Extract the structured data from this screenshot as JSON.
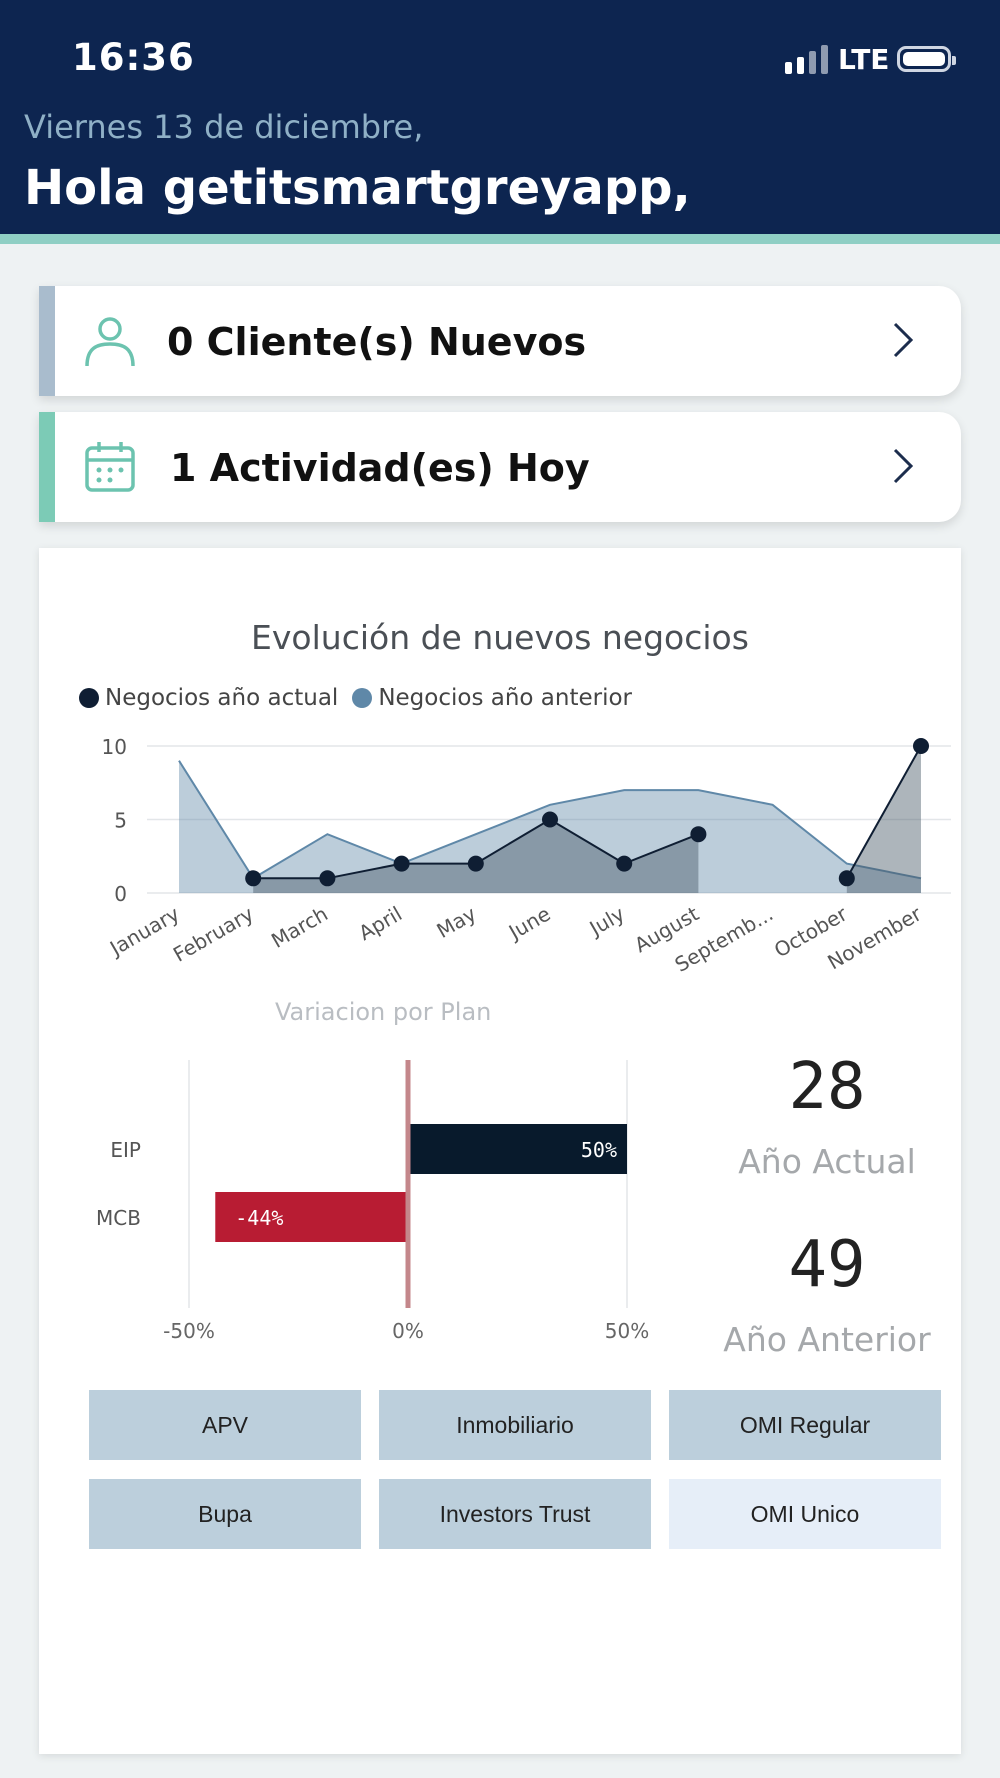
{
  "status_bar": {
    "time": "16:36",
    "network": "LTE",
    "icons": [
      "signal-icon",
      "battery-icon"
    ]
  },
  "header": {
    "date": "Viernes 13 de diciembre,",
    "greeting": "Hola getitsmartgreyapp,"
  },
  "cards": [
    {
      "label": "0 Cliente(s) Nuevos",
      "icon": "user-icon",
      "accent": "#a9bccd"
    },
    {
      "label": "1 Actividad(es) Hoy",
      "icon": "calendar-icon",
      "accent": "#7ccbb6"
    }
  ],
  "colors": {
    "header_bg": "#0d2550",
    "series_current": "#0f1e33",
    "series_previous": "#5f88a8",
    "negative_bar": "#b81c33",
    "positive_bar": "#081a2c"
  },
  "chart_data": [
    {
      "type": "area",
      "title": "Evolución de nuevos negocios",
      "categories": [
        "January",
        "February",
        "March",
        "April",
        "May",
        "June",
        "July",
        "August",
        "Septemb...",
        "October",
        "November"
      ],
      "series": [
        {
          "name": "Negocios año actual",
          "values": [
            null,
            1,
            1,
            2,
            2,
            5,
            2,
            4,
            null,
            1,
            10
          ]
        },
        {
          "name": "Negocios año anterior",
          "values": [
            9,
            1,
            4,
            2,
            4,
            6,
            7,
            7,
            6,
            2,
            1
          ]
        }
      ],
      "yticks": [
        "10",
        "5",
        "0"
      ],
      "ylim": [
        0,
        10
      ],
      "grid": true,
      "legend": "top-left"
    },
    {
      "type": "bar",
      "title": "Variacion por Plan",
      "categories": [
        "EIP",
        "MCB"
      ],
      "values": [
        50,
        -44
      ],
      "value_labels": [
        "50%",
        "-44%"
      ],
      "xticks": [
        "-50%",
        "0%",
        "50%"
      ],
      "xlim": [
        -50,
        50
      ]
    }
  ],
  "kpis": {
    "current_value": "28",
    "current_label": "Año Actual",
    "previous_value": "49",
    "previous_label": "Año Anterior"
  },
  "filters": [
    {
      "label": "APV",
      "selected": true
    },
    {
      "label": "Inmobiliario",
      "selected": true
    },
    {
      "label": "OMI Regular",
      "selected": true
    },
    {
      "label": "Bupa",
      "selected": true
    },
    {
      "label": "Investors Trust",
      "selected": true
    },
    {
      "label": "OMI Unico",
      "selected": false
    }
  ]
}
